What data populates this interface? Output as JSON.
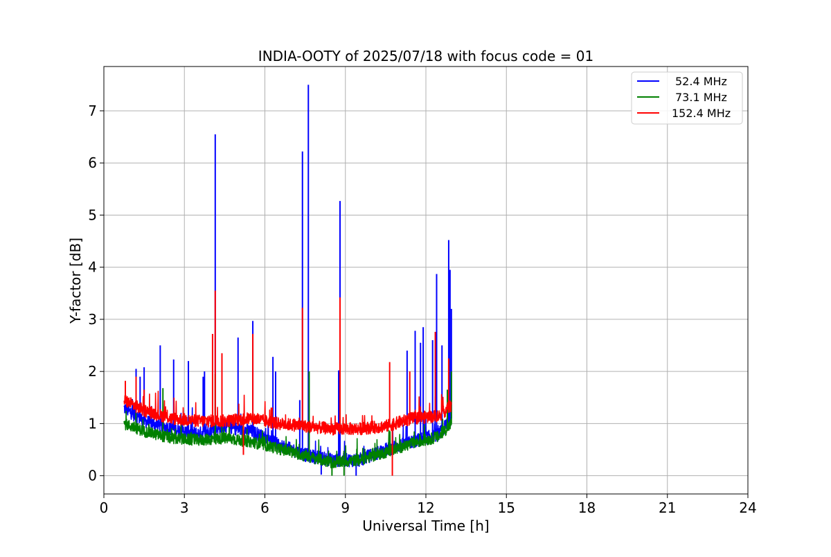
{
  "chart_data": {
    "type": "line",
    "title": "INDIA-OOTY of 2025/07/18 with focus code = 01",
    "xlabel": "Universal Time [h]",
    "ylabel": "Y-factor [dB]",
    "xlim": [
      0,
      24
    ],
    "ylim": [
      -0.35,
      7.85
    ],
    "xticks": [
      0,
      3,
      6,
      9,
      12,
      15,
      18,
      21,
      24
    ],
    "yticks": [
      0,
      1,
      2,
      3,
      4,
      5,
      6,
      7
    ],
    "grid": true,
    "legend_position": "top-right",
    "series": [
      {
        "name": "52.4 MHz",
        "color": "#0000ff",
        "baseline": [
          [
            0.75,
            1.3
          ],
          [
            1.5,
            1.05
          ],
          [
            2.5,
            0.9
          ],
          [
            3.5,
            0.8
          ],
          [
            4.5,
            0.95
          ],
          [
            5.5,
            0.85
          ],
          [
            6.5,
            0.6
          ],
          [
            7.5,
            0.4
          ],
          [
            8.5,
            0.3
          ],
          [
            9.5,
            0.3
          ],
          [
            10.5,
            0.5
          ],
          [
            11.5,
            0.65
          ],
          [
            12.5,
            0.8
          ],
          [
            12.95,
            1.1
          ]
        ],
        "noise": 0.13,
        "spikes": [
          [
            1.2,
            2.05
          ],
          [
            1.35,
            1.9
          ],
          [
            1.5,
            2.08
          ],
          [
            2.1,
            2.5
          ],
          [
            2.6,
            2.23
          ],
          [
            3.15,
            2.2
          ],
          [
            3.7,
            1.9
          ],
          [
            3.75,
            2.0
          ],
          [
            4.15,
            6.55
          ],
          [
            5.0,
            2.65
          ],
          [
            5.55,
            2.97
          ],
          [
            6.3,
            2.28
          ],
          [
            6.4,
            2.0
          ],
          [
            7.3,
            1.45
          ],
          [
            7.4,
            6.22
          ],
          [
            7.62,
            7.5
          ],
          [
            8.75,
            2.02
          ],
          [
            8.8,
            5.27
          ],
          [
            11.3,
            2.4
          ],
          [
            11.6,
            2.78
          ],
          [
            11.8,
            2.55
          ],
          [
            11.9,
            2.85
          ],
          [
            12.25,
            2.6
          ],
          [
            12.4,
            3.87
          ],
          [
            12.6,
            2.5
          ],
          [
            12.85,
            4.52
          ],
          [
            12.9,
            3.95
          ],
          [
            12.95,
            3.2
          ]
        ],
        "dips": [
          [
            8.1,
            0.02
          ],
          [
            9.4,
            0.0
          ]
        ]
      },
      {
        "name": "73.1 MHz",
        "color": "#008000",
        "baseline": [
          [
            0.75,
            1.0
          ],
          [
            1.5,
            0.85
          ],
          [
            2.5,
            0.72
          ],
          [
            3.5,
            0.68
          ],
          [
            4.5,
            0.72
          ],
          [
            5.5,
            0.65
          ],
          [
            6.5,
            0.52
          ],
          [
            7.5,
            0.38
          ],
          [
            8.5,
            0.25
          ],
          [
            9.5,
            0.3
          ],
          [
            10.5,
            0.45
          ],
          [
            11.5,
            0.62
          ],
          [
            12.5,
            0.75
          ],
          [
            12.95,
            1.0
          ]
        ],
        "noise": 0.11,
        "spikes": [
          [
            2.2,
            1.68
          ],
          [
            4.15,
            1.95
          ],
          [
            7.65,
            2.0
          ],
          [
            12.8,
            1.65
          ],
          [
            12.95,
            2.0
          ]
        ],
        "dips": [
          [
            8.5,
            0.0
          ],
          [
            8.95,
            0.0
          ]
        ]
      },
      {
        "name": "152.4 MHz",
        "color": "#ff0000",
        "baseline": [
          [
            0.75,
            1.45
          ],
          [
            1.5,
            1.25
          ],
          [
            2.5,
            1.1
          ],
          [
            3.5,
            1.05
          ],
          [
            4.5,
            1.05
          ],
          [
            5.5,
            1.1
          ],
          [
            6.5,
            1.0
          ],
          [
            7.5,
            0.95
          ],
          [
            8.5,
            0.9
          ],
          [
            9.5,
            0.9
          ],
          [
            10.5,
            0.95
          ],
          [
            11.5,
            1.1
          ],
          [
            12.5,
            1.15
          ],
          [
            12.95,
            1.35
          ]
        ],
        "noise": 0.12,
        "spikes": [
          [
            0.8,
            1.82
          ],
          [
            1.2,
            1.9
          ],
          [
            1.5,
            1.65
          ],
          [
            4.05,
            2.72
          ],
          [
            4.15,
            3.55
          ],
          [
            4.4,
            2.35
          ],
          [
            5.55,
            2.72
          ],
          [
            7.4,
            3.22
          ],
          [
            8.8,
            3.42
          ],
          [
            10.65,
            2.18
          ],
          [
            11.4,
            2.0
          ],
          [
            12.35,
            2.76
          ],
          [
            12.85,
            2.25
          ]
        ],
        "dips": [
          [
            10.75,
            0.0
          ],
          [
            5.2,
            0.4
          ]
        ]
      }
    ]
  }
}
